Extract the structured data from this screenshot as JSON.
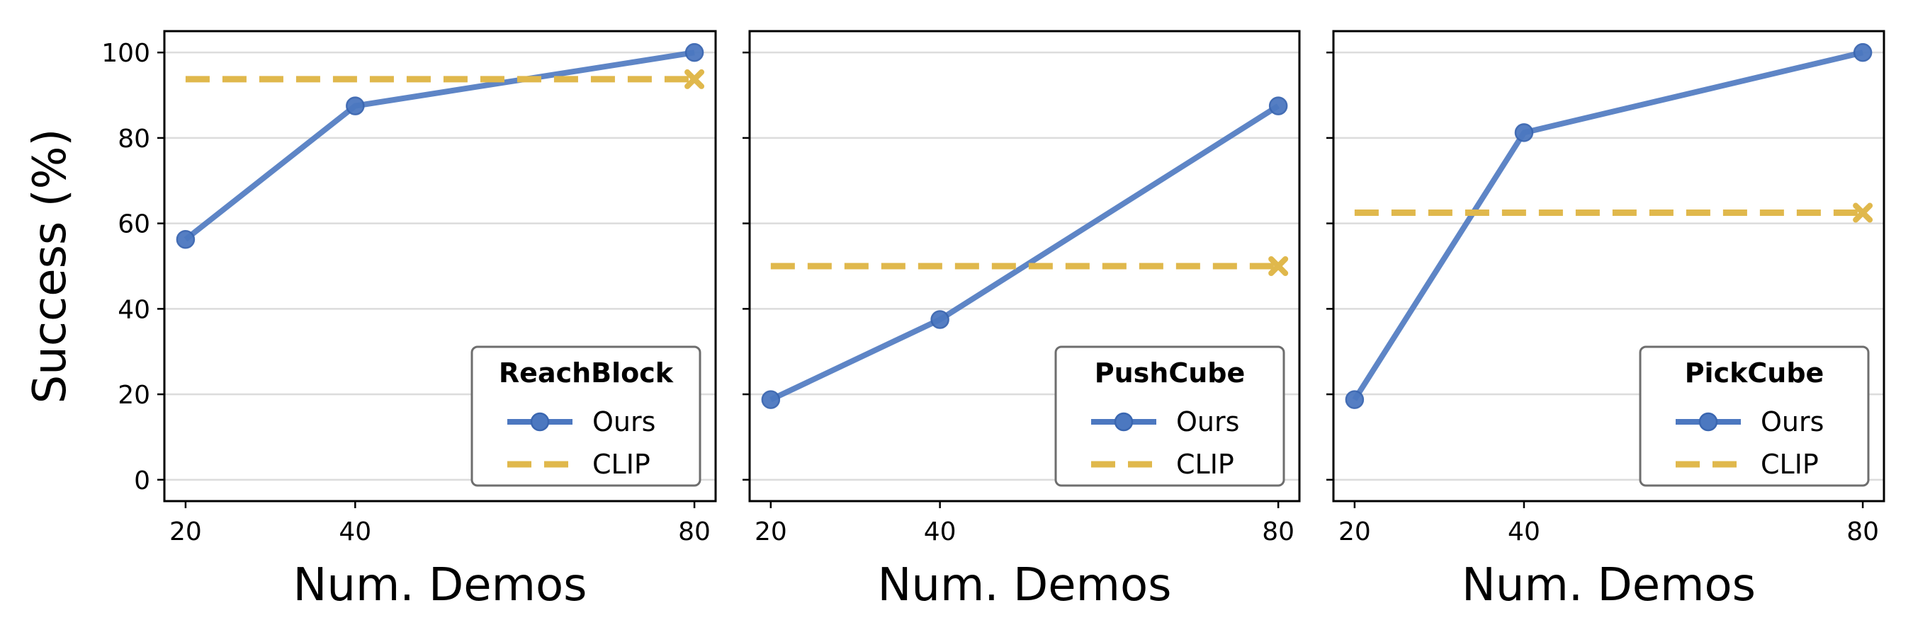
{
  "colors": {
    "ours": "#4c78c0",
    "clip": "#e0b84c"
  },
  "chart_data": [
    {
      "type": "line",
      "title": "",
      "xlabel": "Num. Demos",
      "ylabel": "Success (%)",
      "ylim": [
        -5,
        105
      ],
      "yticks": [
        0,
        20,
        40,
        60,
        80,
        100
      ],
      "xlim": [
        17.5,
        82.5
      ],
      "xticks": [
        20,
        40,
        80
      ],
      "grid": "horizontal",
      "legend_title": "ReachBlock",
      "legend_position": "lower-right",
      "series": [
        {
          "name": "Ours",
          "style": "solid-circle",
          "x": [
            20,
            40,
            80
          ],
          "y": [
            56.25,
            87.5,
            100
          ]
        },
        {
          "name": "CLIP",
          "style": "dashed-x-endpoint",
          "x": [
            20,
            80
          ],
          "y": [
            93.75,
            93.75
          ]
        }
      ]
    },
    {
      "type": "line",
      "title": "",
      "xlabel": "Num. Demos",
      "ylabel": "",
      "ylim": [
        -5,
        105
      ],
      "yticks": [
        0,
        20,
        40,
        60,
        80,
        100
      ],
      "xlim": [
        17.5,
        82.5
      ],
      "xticks": [
        20,
        40,
        80
      ],
      "grid": "horizontal",
      "legend_title": "PushCube",
      "legend_position": "lower-right",
      "series": [
        {
          "name": "Ours",
          "style": "solid-circle",
          "x": [
            20,
            40,
            80
          ],
          "y": [
            18.75,
            37.5,
            87.5
          ]
        },
        {
          "name": "CLIP",
          "style": "dashed-x-endpoint",
          "x": [
            20,
            80
          ],
          "y": [
            50,
            50
          ]
        }
      ]
    },
    {
      "type": "line",
      "title": "",
      "xlabel": "Num. Demos",
      "ylabel": "",
      "ylim": [
        -5,
        105
      ],
      "yticks": [
        0,
        20,
        40,
        60,
        80,
        100
      ],
      "xlim": [
        17.5,
        82.5
      ],
      "xticks": [
        20,
        40,
        80
      ],
      "grid": "horizontal",
      "legend_title": "PickCube",
      "legend_position": "lower-right",
      "series": [
        {
          "name": "Ours",
          "style": "solid-circle",
          "x": [
            20,
            40,
            80
          ],
          "y": [
            18.75,
            81.25,
            100
          ]
        },
        {
          "name": "CLIP",
          "style": "dashed-x-endpoint",
          "x": [
            20,
            80
          ],
          "y": [
            62.5,
            62.5
          ]
        }
      ]
    }
  ]
}
